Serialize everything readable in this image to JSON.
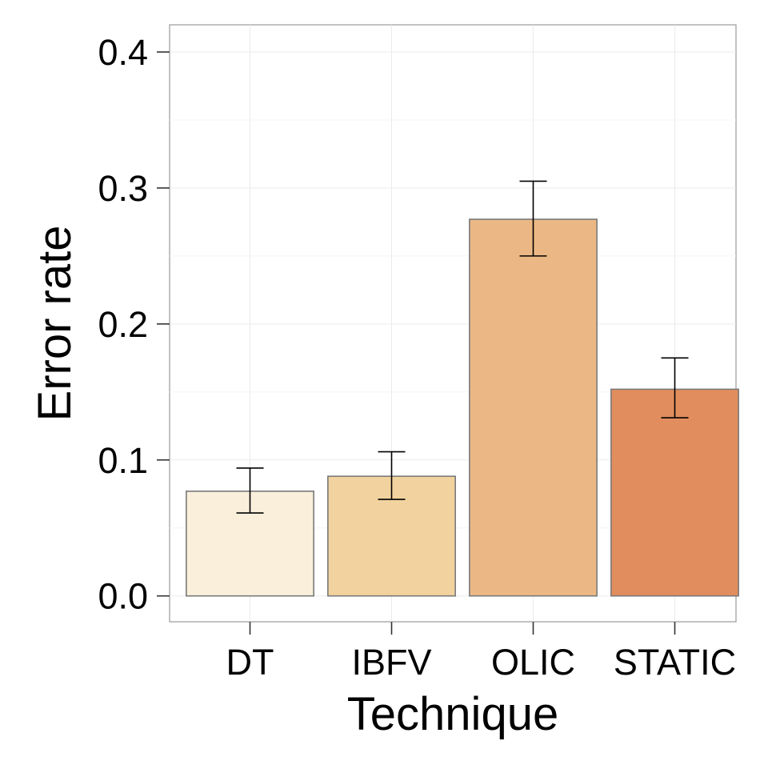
{
  "chart_data": {
    "type": "bar",
    "xlabel": "Technique",
    "ylabel": "Error rate",
    "categories": [
      "DT",
      "IBFV",
      "OLIC",
      "STATIC"
    ],
    "values": [
      0.077,
      0.088,
      0.277,
      0.152
    ],
    "error_low": [
      0.061,
      0.071,
      0.25,
      0.131
    ],
    "error_high": [
      0.094,
      0.106,
      0.305,
      0.175
    ],
    "colors": [
      "#FAEFDB",
      "#F2D29E",
      "#EBB885",
      "#E28D5D"
    ],
    "ylim": [
      -0.019,
      0.42
    ],
    "yticks": [
      0.0,
      0.1,
      0.2,
      0.3,
      0.4
    ],
    "ytick_labels": [
      "0.0",
      "0.1",
      "0.2",
      "0.3",
      "0.4"
    ],
    "grid": true,
    "legend": "none"
  }
}
